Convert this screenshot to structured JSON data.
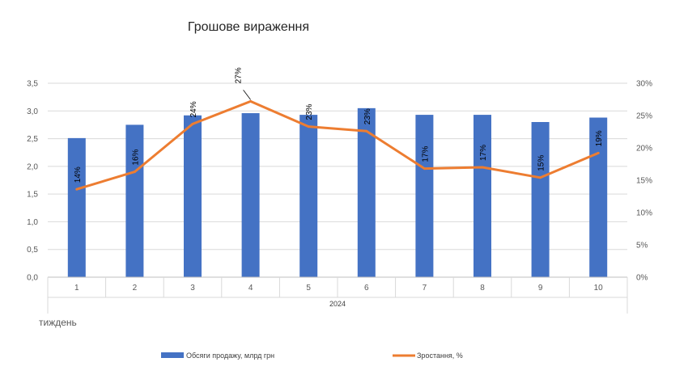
{
  "chart_data": {
    "type": "bar+line",
    "title": "Грошове вираження",
    "categories": [
      "1",
      "2",
      "3",
      "4",
      "5",
      "6",
      "7",
      "8",
      "9",
      "10"
    ],
    "x_group_label": "2024",
    "below_axis_text": "тиждень",
    "series": [
      {
        "name": "Обсяги продажу, млрд грн",
        "type": "bar",
        "axis": "left",
        "color": "#4472C4",
        "values": [
          2.51,
          2.75,
          2.92,
          2.96,
          2.93,
          3.05,
          2.93,
          2.93,
          2.8,
          2.88
        ]
      },
      {
        "name": "Зростання, %",
        "type": "line",
        "axis": "right",
        "color": "#ED7D31",
        "values": [
          13.6,
          16.3,
          23.7,
          27.2,
          23.3,
          22.6,
          16.8,
          17.0,
          15.4,
          19.2
        ],
        "data_labels": [
          "14%",
          "16%",
          "24%",
          "27%",
          "23%",
          "23%",
          "17%",
          "17%",
          "15%",
          "19%"
        ]
      }
    ],
    "y_left": {
      "min": 0,
      "max": 3.5,
      "step": 0.5,
      "tick_labels": [
        "0,0",
        "0,5",
        "1,0",
        "1,5",
        "2,0",
        "2,5",
        "3,0",
        "3,5"
      ]
    },
    "y_right": {
      "min": 0,
      "max": 30,
      "step": 5,
      "tick_labels": [
        "0%",
        "5%",
        "10%",
        "15%",
        "20%",
        "25%",
        "30%"
      ]
    },
    "grid": true,
    "legend_position": "bottom"
  }
}
